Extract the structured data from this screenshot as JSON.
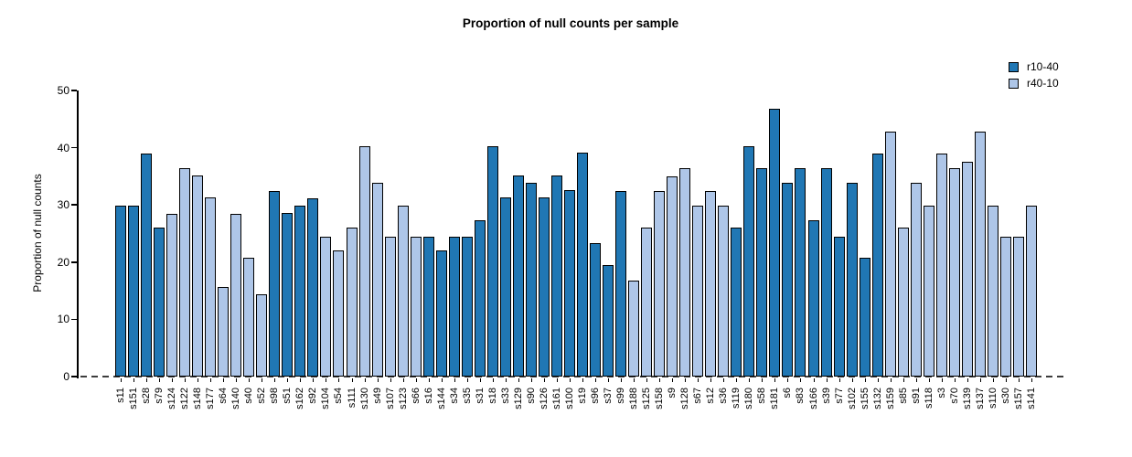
{
  "chart_data": {
    "type": "bar",
    "title": "Proportion of null counts per sample",
    "ylabel": "Proportion of null counts",
    "xlabel": "",
    "ylim": [
      0,
      50
    ],
    "yticks": [
      0,
      10,
      20,
      30,
      40,
      50
    ],
    "grid": false,
    "legend_position": "top-right",
    "baseline_style": "dashed",
    "bar_border_color": "#000000",
    "legend": [
      {
        "label": "r10-40",
        "color": "#2077b4"
      },
      {
        "label": "r40-10",
        "color": "#aec6e8"
      }
    ],
    "bars": [
      {
        "label": "s11",
        "value": 29.8,
        "group": "r10-40"
      },
      {
        "label": "s151",
        "value": 29.8,
        "group": "r10-40"
      },
      {
        "label": "s28",
        "value": 39.0,
        "group": "r10-40"
      },
      {
        "label": "s79",
        "value": 26.0,
        "group": "r10-40"
      },
      {
        "label": "s124",
        "value": 28.5,
        "group": "r40-10"
      },
      {
        "label": "s122",
        "value": 36.4,
        "group": "r40-10"
      },
      {
        "label": "s148",
        "value": 35.1,
        "group": "r40-10"
      },
      {
        "label": "s177",
        "value": 31.3,
        "group": "r40-10"
      },
      {
        "label": "s64",
        "value": 15.6,
        "group": "r40-10"
      },
      {
        "label": "s140",
        "value": 28.5,
        "group": "r40-10"
      },
      {
        "label": "s40",
        "value": 20.8,
        "group": "r40-10"
      },
      {
        "label": "s52",
        "value": 14.3,
        "group": "r40-10"
      },
      {
        "label": "s98",
        "value": 32.5,
        "group": "r10-40"
      },
      {
        "label": "s51",
        "value": 28.6,
        "group": "r10-40"
      },
      {
        "label": "s162",
        "value": 29.9,
        "group": "r10-40"
      },
      {
        "label": "s92",
        "value": 31.2,
        "group": "r10-40"
      },
      {
        "label": "s104",
        "value": 24.5,
        "group": "r40-10"
      },
      {
        "label": "s54",
        "value": 22.0,
        "group": "r40-10"
      },
      {
        "label": "s111",
        "value": 26.0,
        "group": "r40-10"
      },
      {
        "label": "s130",
        "value": 40.2,
        "group": "r40-10"
      },
      {
        "label": "s49",
        "value": 33.8,
        "group": "r40-10"
      },
      {
        "label": "s107",
        "value": 24.5,
        "group": "r40-10"
      },
      {
        "label": "s123",
        "value": 29.8,
        "group": "r40-10"
      },
      {
        "label": "s66",
        "value": 24.5,
        "group": "r40-10"
      },
      {
        "label": "s16",
        "value": 24.5,
        "group": "r10-40"
      },
      {
        "label": "s144",
        "value": 22.0,
        "group": "r10-40"
      },
      {
        "label": "s34",
        "value": 24.5,
        "group": "r10-40"
      },
      {
        "label": "s35",
        "value": 24.5,
        "group": "r10-40"
      },
      {
        "label": "s31",
        "value": 27.3,
        "group": "r10-40"
      },
      {
        "label": "s18",
        "value": 40.2,
        "group": "r10-40"
      },
      {
        "label": "s33",
        "value": 31.3,
        "group": "r10-40"
      },
      {
        "label": "s129",
        "value": 35.1,
        "group": "r10-40"
      },
      {
        "label": "s90",
        "value": 33.9,
        "group": "r10-40"
      },
      {
        "label": "s126",
        "value": 31.3,
        "group": "r10-40"
      },
      {
        "label": "s161",
        "value": 35.1,
        "group": "r10-40"
      },
      {
        "label": "s100",
        "value": 32.6,
        "group": "r10-40"
      },
      {
        "label": "s19",
        "value": 39.1,
        "group": "r10-40"
      },
      {
        "label": "s96",
        "value": 23.3,
        "group": "r10-40"
      },
      {
        "label": "s37",
        "value": 19.5,
        "group": "r10-40"
      },
      {
        "label": "s99",
        "value": 32.5,
        "group": "r10-40"
      },
      {
        "label": "s188",
        "value": 16.8,
        "group": "r40-10"
      },
      {
        "label": "s125",
        "value": 26.0,
        "group": "r40-10"
      },
      {
        "label": "s158",
        "value": 32.5,
        "group": "r40-10"
      },
      {
        "label": "s9",
        "value": 35.0,
        "group": "r40-10"
      },
      {
        "label": "s128",
        "value": 36.4,
        "group": "r40-10"
      },
      {
        "label": "s67",
        "value": 29.8,
        "group": "r40-10"
      },
      {
        "label": "s12",
        "value": 32.5,
        "group": "r40-10"
      },
      {
        "label": "s36",
        "value": 29.8,
        "group": "r40-10"
      },
      {
        "label": "s119",
        "value": 26.0,
        "group": "r10-40"
      },
      {
        "label": "s180",
        "value": 40.2,
        "group": "r10-40"
      },
      {
        "label": "s58",
        "value": 36.4,
        "group": "r10-40"
      },
      {
        "label": "s181",
        "value": 46.8,
        "group": "r10-40"
      },
      {
        "label": "s6",
        "value": 33.8,
        "group": "r10-40"
      },
      {
        "label": "s83",
        "value": 36.4,
        "group": "r10-40"
      },
      {
        "label": "s166",
        "value": 27.3,
        "group": "r10-40"
      },
      {
        "label": "s39",
        "value": 36.4,
        "group": "r10-40"
      },
      {
        "label": "s77",
        "value": 24.5,
        "group": "r10-40"
      },
      {
        "label": "s102",
        "value": 33.8,
        "group": "r10-40"
      },
      {
        "label": "s155",
        "value": 20.8,
        "group": "r10-40"
      },
      {
        "label": "s132",
        "value": 39.0,
        "group": "r10-40"
      },
      {
        "label": "s159",
        "value": 42.8,
        "group": "r40-10"
      },
      {
        "label": "s85",
        "value": 26.0,
        "group": "r40-10"
      },
      {
        "label": "s91",
        "value": 33.8,
        "group": "r40-10"
      },
      {
        "label": "s118",
        "value": 29.8,
        "group": "r40-10"
      },
      {
        "label": "s3",
        "value": 39.0,
        "group": "r40-10"
      },
      {
        "label": "s70",
        "value": 36.4,
        "group": "r40-10"
      },
      {
        "label": "s139",
        "value": 37.6,
        "group": "r40-10"
      },
      {
        "label": "s137",
        "value": 42.8,
        "group": "r40-10"
      },
      {
        "label": "s110",
        "value": 29.8,
        "group": "r40-10"
      },
      {
        "label": "s30",
        "value": 24.5,
        "group": "r40-10"
      },
      {
        "label": "s157",
        "value": 24.5,
        "group": "r40-10"
      },
      {
        "label": "s141",
        "value": 29.8,
        "group": "r40-10"
      }
    ]
  }
}
